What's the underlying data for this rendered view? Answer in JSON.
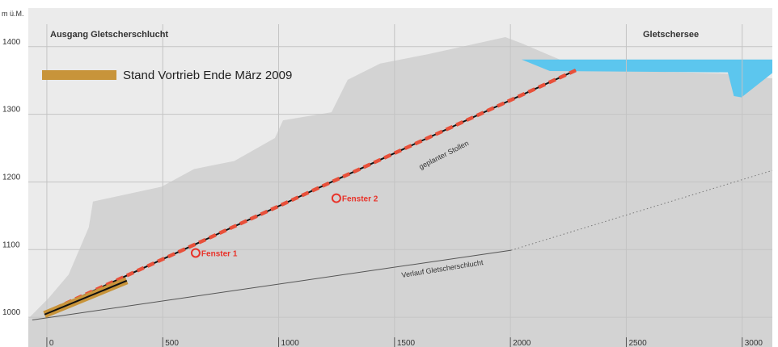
{
  "chart_data": {
    "type": "profile",
    "y_unit": "m ü.M.",
    "left_label": "Ausgang Gletscherschlucht",
    "right_label": "Gletschersee",
    "xlim": [
      -80,
      3130
    ],
    "ylim": [
      956,
      1457
    ],
    "xticks": [
      0,
      500,
      1000,
      1500,
      2000,
      2500,
      3000
    ],
    "yticks": [
      1000,
      1100,
      1200,
      1300,
      1400
    ],
    "grid": true,
    "series": [
      {
        "color": "#d3d3d3",
        "fill": true,
        "x": [
          -80,
          7,
          94,
          181,
          199,
          495,
          635,
          809,
          984,
          1019,
          1228,
          1298,
          1438,
          1647,
          1978,
          2048,
          2240,
          2449,
          2938,
          3130
        ],
        "y": [
          998,
          1028,
          1063,
          1133,
          1171,
          1193,
          1219,
          1231,
          1265,
          1291,
          1303,
          1351,
          1375,
          1389,
          1414,
          1405,
          1377,
          1365,
          1360,
          1353
        ]
      },
      {
        "color": "#5cc6ee",
        "fill": true,
        "x": [
          2048,
          3130,
          3130,
          2997,
          2964,
          2938,
          2170
        ],
        "y": [
          1381,
          1381,
          1361,
          1325,
          1327,
          1362,
          1364
        ]
      },
      {
        "color": "#555555",
        "x": [
          -63,
          2003
        ],
        "y": [
          996,
          1099
        ]
      },
      {
        "color": "#777777",
        "dotted": true,
        "x": [
          2003,
          3130
        ],
        "y": [
          1099,
          1217
        ]
      },
      {
        "color": "#e8503a",
        "dashed": true,
        "x": [
          -10,
          2282
        ],
        "y": [
          1006,
          1365
        ]
      },
      {
        "name": "Stand Vortrieb Ende März 2009",
        "color": "#c8943a",
        "x": [
          -10,
          345
        ],
        "y": [
          1004,
          1054
        ]
      }
    ],
    "points": [
      {
        "label": "Fenster 1",
        "x": 642,
        "y": 1095
      },
      {
        "label": "Fenster 2",
        "x": 1249,
        "y": 1176
      }
    ],
    "annotations": [
      "geplanter Stollen",
      "Verlauf Gletscherschlucht"
    ]
  }
}
